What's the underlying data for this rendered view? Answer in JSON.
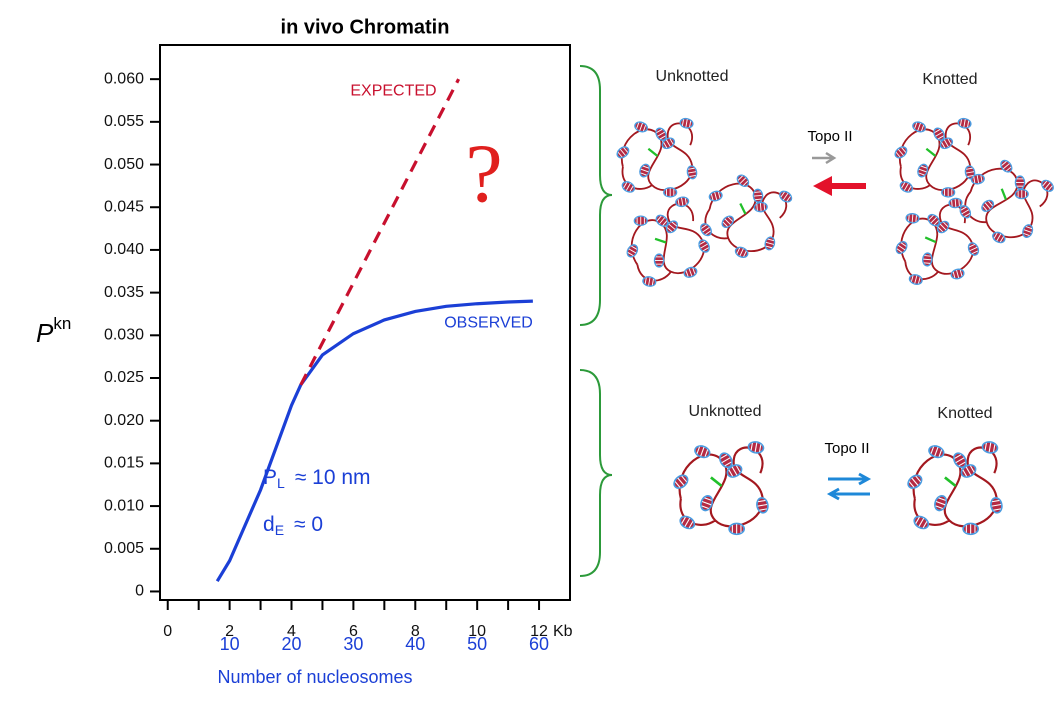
{
  "chart_data": {
    "type": "line",
    "title": "in vivo   Chromatin",
    "y_label": {
      "text": "P",
      "superscript": "kn"
    },
    "x_unit": "Kb",
    "x2_label": "Number of nucleosomes",
    "xlim": [
      -0.25,
      13
    ],
    "xticks": [
      0,
      2,
      4,
      6,
      8,
      10,
      12
    ],
    "xminor_ticks": [
      1,
      3,
      5,
      7,
      9,
      11
    ],
    "x2lim": [
      -1.25,
      65
    ],
    "x2ticks": [
      10,
      20,
      30,
      40,
      50,
      60
    ],
    "ylim": [
      -0.001,
      0.064
    ],
    "yticks": [
      0,
      0.005,
      {
        "value": 0.01,
        "label": "0.010"
      },
      0.015,
      {
        "value": 0.02,
        "label": "0.020"
      },
      0.025,
      {
        "value": 0.03,
        "label": "0.030"
      },
      0.035,
      {
        "value": 0.04,
        "label": "0.040"
      },
      0.045,
      {
        "value": 0.05,
        "label": "0.050"
      },
      0.055,
      {
        "value": 0.06,
        "label": "0.060"
      }
    ],
    "series": [
      {
        "name": "OBSERVED",
        "color": "#1b3fd6",
        "style": "solid",
        "x": [
          1.6,
          2,
          3,
          4,
          4.3,
          5,
          6,
          7,
          8,
          9,
          10,
          11,
          11.8
        ],
        "values": [
          0.0012,
          0.0036,
          0.0119,
          0.0218,
          0.0242,
          0.0277,
          0.0302,
          0.0318,
          0.0328,
          0.0334,
          0.0337,
          0.0339,
          0.034
        ]
      },
      {
        "name": "EXPECTED",
        "color": "#c8102e",
        "style": "dashed",
        "x": [
          4.3,
          9.4
        ],
        "values": [
          0.0242,
          0.06
        ]
      }
    ],
    "annotations": [
      {
        "text": "?",
        "color": "#e0201e"
      },
      {
        "text": "P",
        "subscript": "L",
        "suffix": "≈ 10 nm",
        "color": "#1b3fd6"
      },
      {
        "text": "d",
        "subscript": "E",
        "suffix": "≈  0",
        "color": "#1b3fd6"
      }
    ]
  },
  "diagram": {
    "top": {
      "left": "Unknotted",
      "right": "Knotted",
      "enzyme": "Topo II"
    },
    "bottom": {
      "left": "Unknotted",
      "right": "Knotted",
      "enzyme": "Topo II"
    }
  }
}
